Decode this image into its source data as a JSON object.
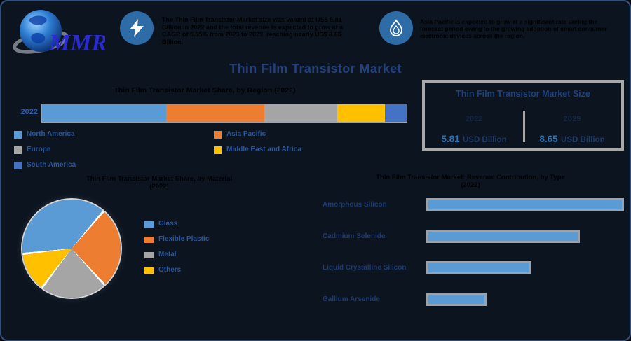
{
  "brand": {
    "logo_text": "MMR"
  },
  "header": {
    "stat1_text": "The Thin Film Transistor Market size was valued at US$ 5.81 Billion in 2022 and the total revenue is expected to grow at a CAGR of 5.85% from 2023 to 2029, reaching nearly US$ 8.65 Billion.",
    "stat2_text": "Asia Pacific is expected to grow at a significant rate during the forecast period owing to the growing adoption of smart consumer electronic devices across the region."
  },
  "main_title": "Thin Film Transistor Market",
  "market_size_box": {
    "title": "Thin Film Transistor Market Size",
    "columns": [
      {
        "year": "2022",
        "value": "5.81",
        "unit": "USD Billion"
      },
      {
        "year": "2029",
        "value": "8.65",
        "unit": "USD Billion"
      }
    ]
  },
  "colors": {
    "background": "#0c1420",
    "accent_blue": "#5b9bd5",
    "accent_orange": "#ed7d31",
    "accent_gray": "#a5a5a5",
    "accent_yellow": "#ffc000",
    "accent_darkblue": "#4472c4",
    "title_navy": "#24417e",
    "value_blue": "#2e75b6",
    "icon_circle": "#2e6ca8",
    "box_border": "#a8a8a8"
  },
  "chart_data": [
    {
      "type": "bar",
      "subtype": "stacked-horizontal",
      "title": "Thin Film Transistor Market Share, by Region (2022)",
      "categories": [
        "2022"
      ],
      "series": [
        {
          "name": "North America",
          "value": 34,
          "color": "#5b9bd5"
        },
        {
          "name": "Asia Pacific",
          "value": 27,
          "color": "#ed7d31"
        },
        {
          "name": "Europe",
          "value": 20,
          "color": "#a5a5a5"
        },
        {
          "name": "Middle East and Africa",
          "value": 13,
          "color": "#ffc000"
        },
        {
          "name": "South America",
          "value": 6,
          "color": "#4472c4"
        }
      ],
      "legend_columns": [
        [
          {
            "label": "North America",
            "color": "#5b9bd5"
          },
          {
            "label": "Europe",
            "color": "#a5a5a5"
          },
          {
            "label": "South America",
            "color": "#4472c4"
          }
        ],
        [
          {
            "label": "Asia Pacific",
            "color": "#ed7d31"
          },
          {
            "label": "Middle East and Africa",
            "color": "#ffc000"
          }
        ]
      ],
      "xlim": [
        0,
        100
      ],
      "legend_position": "bottom"
    },
    {
      "type": "pie",
      "title_line1": "Thin Film Transistor Market Share, by Material",
      "title_line2": "(2022)",
      "slices": [
        {
          "label": "Glass",
          "value": 38,
          "color": "#5b9bd5"
        },
        {
          "label": "Flexible Plastic",
          "value": 27,
          "color": "#ed7d31"
        },
        {
          "label": "Metal",
          "value": 22,
          "color": "#a5a5a5"
        },
        {
          "label": "Others",
          "value": 13,
          "color": "#ffc000"
        }
      ],
      "start_angle_deg": -95,
      "legend_position": "right"
    },
    {
      "type": "bar",
      "subtype": "horizontal-ranking",
      "title_line1": "Thin Film Transistor Market: Revenue Contribution, by Type",
      "title_line2": "(2022)",
      "categories": [
        "Amorphous Silicon",
        "Cadmium Selenide",
        "Liquid Crystalline Silicon",
        "Gallium Arsenide"
      ],
      "values": [
        100,
        77,
        52,
        29
      ],
      "bar_color": "#5b9bd5",
      "note": "values are relative bar lengths in percent of longest bar"
    }
  ]
}
